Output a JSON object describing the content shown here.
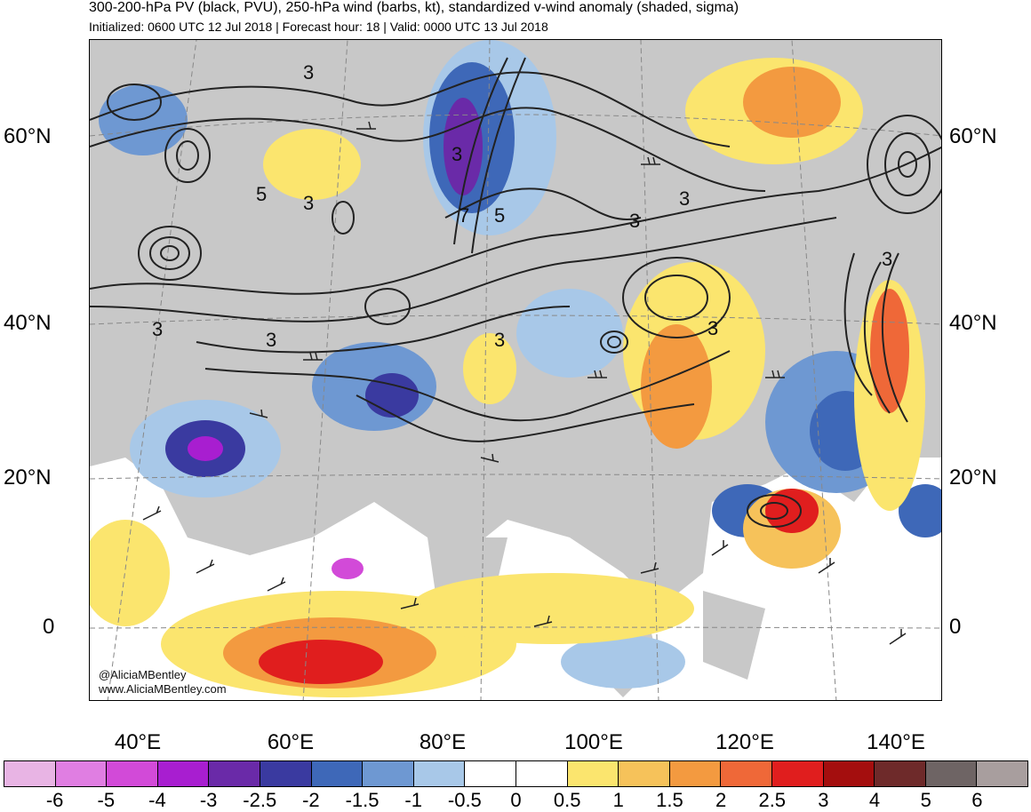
{
  "header": {
    "title": "300-200-hPa PV (black, PVU), 250-hPa wind (barbs, kt), standardized v-wind anomaly (shaded, sigma)",
    "subtitle": "Initialized: 0600 UTC 12 Jul 2018 | Forecast hour: 18 | Valid: 0000 UTC 13 Jul 2018"
  },
  "map": {
    "lat_labels": [
      "60°N",
      "40°N",
      "20°N",
      "0"
    ],
    "lon_labels": [
      "40°E",
      "60°E",
      "80°E",
      "100°E",
      "120°E",
      "140°E"
    ],
    "credit": [
      "@AliciaMBentley",
      "www.AliciaMBentley.com"
    ],
    "contour_labels": [
      "3",
      "3",
      "5",
      "3",
      "3",
      "7",
      "5",
      "3",
      "3",
      "3",
      "3",
      "3",
      "3"
    ],
    "colors": {
      "land_gray": "#c8c8c8",
      "contour": "#222222"
    }
  },
  "colorbar": {
    "labels": [
      "-6",
      "-5",
      "-4",
      "-3",
      "-2.5",
      "-2",
      "-1.5",
      "-1",
      "-0.5",
      "0",
      "0.5",
      "1",
      "1.5",
      "2",
      "2.5",
      "3",
      "4",
      "5",
      "6"
    ],
    "colors": [
      "#e8b4e4",
      "#e07ee2",
      "#d24ad8",
      "#a81ed0",
      "#6a2aa8",
      "#3a3aa0",
      "#3e68b8",
      "#6e98d2",
      "#a8c8e8",
      "#ffffff",
      "#ffffff",
      "#fbe56e",
      "#f6c25a",
      "#f39a40",
      "#ef6838",
      "#e01e1e",
      "#a40e0e",
      "#6e2a2a",
      "#6e6464",
      "#a89e9e"
    ]
  }
}
